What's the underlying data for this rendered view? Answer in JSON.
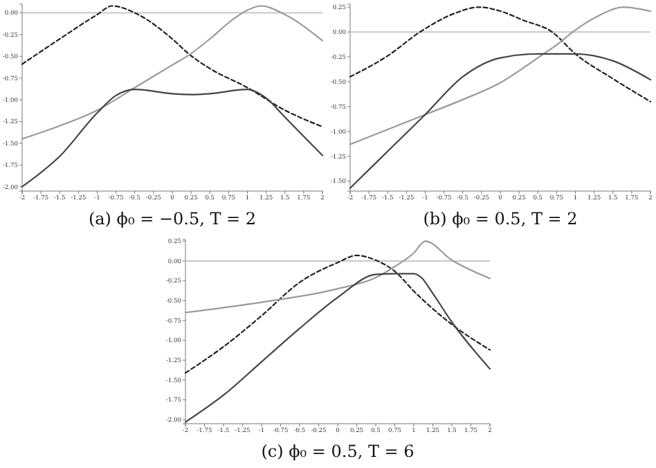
{
  "chart_data": [
    {
      "type": "line",
      "title": "(a) ϕ₀ = −0.5, T = 2",
      "xlim": [
        -2,
        2
      ],
      "ylim": [
        -2.05,
        0.1
      ],
      "xticks": [
        -2,
        -1.75,
        -1.5,
        -1.25,
        -1,
        -0.75,
        -0.5,
        -0.25,
        0,
        0.25,
        0.5,
        0.75,
        1,
        1.25,
        1.5,
        1.75,
        2
      ],
      "yticks": [
        {
          "value": 0,
          "label": "0.00"
        },
        {
          "value": -0.25,
          "label": "-0.25"
        },
        {
          "value": -0.5,
          "label": "-0.50"
        },
        {
          "value": -0.75,
          "label": "-0.75"
        },
        {
          "value": -1,
          "label": "-1.00"
        },
        {
          "value": -1.25,
          "label": "-1.25"
        },
        {
          "value": -1.5,
          "label": "-1.50"
        },
        {
          "value": -1.75,
          "label": "-1.75"
        },
        {
          "value": -2,
          "label": "-2.00"
        }
      ],
      "ref_lines": [
        {
          "axis": "y",
          "value": 0,
          "color": "#c8c8c8"
        }
      ],
      "series": [
        {
          "color": "#222222",
          "line_style": "dashed",
          "x": [
            -2,
            -1.5,
            -1,
            -0.8,
            -0.5,
            0,
            0.23,
            0.5,
            1,
            1.5,
            2
          ],
          "values": [
            -0.59,
            -0.3,
            -0.02,
            0.08,
            0.0,
            -0.3,
            -0.48,
            -0.64,
            -0.86,
            -1.12,
            -1.31
          ]
        },
        {
          "color": "#9a9a9a",
          "line_style": "solid",
          "x": [
            -2,
            -1.5,
            -1,
            -0.5,
            0,
            0.23,
            0.5,
            0.8,
            1,
            1.18,
            1.5,
            2
          ],
          "values": [
            -1.45,
            -1.3,
            -1.12,
            -0.86,
            -0.6,
            -0.48,
            -0.3,
            -0.08,
            0.03,
            0.08,
            -0.02,
            -0.32
          ]
        },
        {
          "color": "#444444",
          "line_style": "solid",
          "x": [
            -2,
            -1.5,
            -1,
            -0.75,
            -0.5,
            0,
            0.25,
            0.5,
            1,
            1.25,
            1.5,
            2
          ],
          "values": [
            -2.0,
            -1.65,
            -1.15,
            -0.95,
            -0.88,
            -0.93,
            -0.94,
            -0.93,
            -0.88,
            -0.98,
            -1.2,
            -1.64
          ]
        }
      ]
    },
    {
      "type": "line",
      "title": "(b) ϕ₀ = 0.5, T = 2",
      "xlim": [
        -2,
        2
      ],
      "ylim": [
        -1.6,
        0.28
      ],
      "xticks": [
        -2,
        -1.75,
        -1.5,
        -1.25,
        -1,
        -0.75,
        -0.5,
        -0.25,
        0,
        0.25,
        0.5,
        0.75,
        1,
        1.25,
        1.5,
        1.75,
        2
      ],
      "yticks": [
        {
          "value": 0.25,
          "label": "0.25"
        },
        {
          "value": 0,
          "label": "0.00"
        },
        {
          "value": -0.25,
          "label": "-0.25"
        },
        {
          "value": -0.5,
          "label": "-0.50"
        },
        {
          "value": -0.75,
          "label": "-0.75"
        },
        {
          "value": -1,
          "label": "-1.00"
        },
        {
          "value": -1.25,
          "label": "-1.25"
        },
        {
          "value": -1.5,
          "label": "-1.50"
        }
      ],
      "ref_lines": [
        {
          "axis": "y",
          "value": 0,
          "color": "#c8c8c8"
        }
      ],
      "series": [
        {
          "color": "#222222",
          "line_style": "dashed",
          "x": [
            -2,
            -1.5,
            -1.07,
            -0.6,
            -0.28,
            0,
            0.3,
            0.69,
            1,
            1.5,
            2
          ],
          "values": [
            -0.45,
            -0.24,
            0,
            0.19,
            0.25,
            0.21,
            0.12,
            0,
            -0.22,
            -0.47,
            -0.7
          ]
        },
        {
          "color": "#9a9a9a",
          "line_style": "solid",
          "x": [
            -2,
            -1.5,
            -1,
            -0.5,
            0,
            0.5,
            0.75,
            1,
            1.3,
            1.64,
            2
          ],
          "values": [
            -1.13,
            -0.98,
            -0.83,
            -0.68,
            -0.51,
            -0.26,
            -0.13,
            0.02,
            0.16,
            0.25,
            0.21
          ]
        },
        {
          "color": "#444444",
          "line_style": "solid",
          "x": [
            -2,
            -1.5,
            -1,
            -0.5,
            0,
            0.5,
            1,
            1.5,
            2
          ],
          "values": [
            -1.57,
            -1.2,
            -0.83,
            -0.45,
            -0.26,
            -0.22,
            -0.22,
            -0.29,
            -0.48
          ]
        }
      ]
    },
    {
      "type": "line",
      "title": "(c) ϕ₀ = 0.5, T = 6",
      "xlim": [
        -2,
        2
      ],
      "ylim": [
        -2.05,
        0.27
      ],
      "xticks": [
        -2,
        -1.75,
        -1.5,
        -1.25,
        -1,
        -0.75,
        -0.5,
        -0.25,
        0,
        0.25,
        0.5,
        0.75,
        1,
        1.25,
        1.5,
        1.75,
        2
      ],
      "yticks": [
        {
          "value": 0.25,
          "label": "0.25"
        },
        {
          "value": 0,
          "label": "0.00"
        },
        {
          "value": -0.25,
          "label": "-0.25"
        },
        {
          "value": -0.5,
          "label": "-0.50"
        },
        {
          "value": -0.75,
          "label": "-0.75"
        },
        {
          "value": -1,
          "label": "-1.00"
        },
        {
          "value": -1.25,
          "label": "-1.25"
        },
        {
          "value": -1.5,
          "label": "-1.50"
        },
        {
          "value": -1.75,
          "label": "-1.75"
        },
        {
          "value": -2,
          "label": "-2.00"
        }
      ],
      "ref_lines": [
        {
          "axis": "y",
          "value": 0,
          "color": "#c8c8c8"
        }
      ],
      "series": [
        {
          "color": "#222222",
          "line_style": "dashed",
          "x": [
            -2,
            -1.5,
            -1,
            -0.5,
            0,
            0.25,
            0.5,
            0.75,
            1,
            1.5,
            2
          ],
          "values": [
            -1.41,
            -1.08,
            -0.69,
            -0.27,
            -0.02,
            0.07,
            0.01,
            -0.13,
            -0.38,
            -0.8,
            -1.12
          ]
        },
        {
          "color": "#9a9a9a",
          "line_style": "solid",
          "x": [
            -2,
            -1,
            0,
            0.5,
            0.75,
            1,
            1.15,
            1.5,
            2
          ],
          "values": [
            -0.65,
            -0.52,
            -0.35,
            -0.21,
            -0.07,
            0.1,
            0.25,
            0.01,
            -0.22
          ]
        },
        {
          "color": "#444444",
          "line_style": "solid",
          "x": [
            -2,
            -1.5,
            -1,
            -0.5,
            0,
            0.5,
            0.75,
            1,
            1.1,
            1.25,
            1.5,
            2
          ],
          "values": [
            -2.03,
            -1.69,
            -1.27,
            -0.85,
            -0.46,
            -0.17,
            -0.16,
            -0.16,
            -0.21,
            -0.41,
            -0.77,
            -1.36
          ]
        }
      ]
    }
  ]
}
